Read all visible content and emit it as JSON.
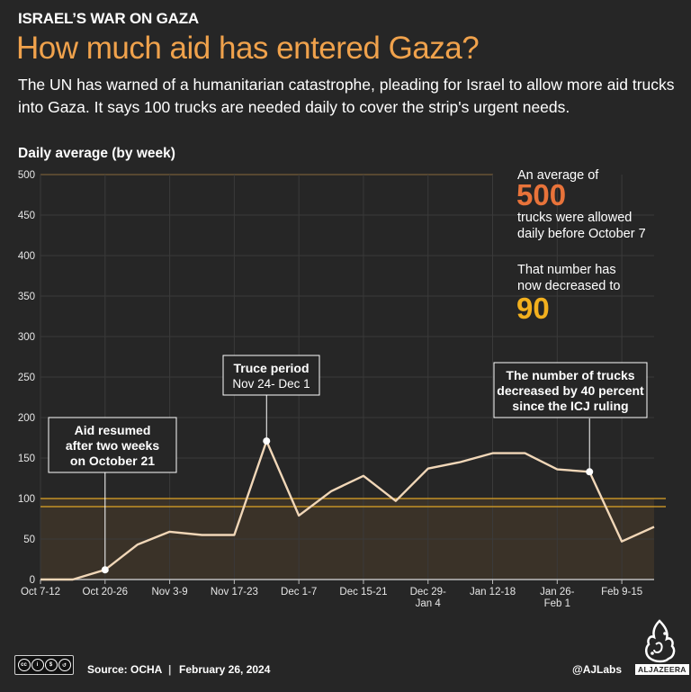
{
  "kicker": "ISRAEL’S WAR ON GAZA",
  "title": "How much aid has entered Gaza?",
  "subtitle": "The UN has warned of a humanitarian catastrophe, pleading for Israel to allow more aid trucks into Gaza. It says 100 trucks are needed daily to cover the strip's urgent needs.",
  "chart_data": {
    "type": "line",
    "ylabel": "Daily average (by week)",
    "ylim": [
      0,
      500
    ],
    "yticks": [
      0,
      50,
      100,
      150,
      200,
      250,
      300,
      350,
      400,
      450,
      500
    ],
    "grid": true,
    "xticks": [
      {
        "label": "Oct 7-12",
        "index": 0
      },
      {
        "label": "Oct 20-26",
        "index": 2
      },
      {
        "label": "Nov 3-9",
        "index": 4
      },
      {
        "label": "Nov 17-23",
        "index": 6
      },
      {
        "label": "Dec 1-7",
        "index": 8
      },
      {
        "label": "Dec 15-21",
        "index": 10
      },
      {
        "label": "Dec 29-\nJan 4",
        "index": 12
      },
      {
        "label": "Jan 12-18",
        "index": 14
      },
      {
        "label": "Jan 26-\nFeb 1",
        "index": 16
      },
      {
        "label": "Feb 9-15",
        "index": 18
      }
    ],
    "values": [
      0,
      0,
      12,
      43,
      59,
      55,
      55,
      171,
      79,
      109,
      128,
      97,
      137,
      145,
      156,
      156,
      136,
      133,
      47,
      65
    ],
    "reference_lines": [
      {
        "value": 100,
        "color": "#e0a526"
      },
      {
        "value": 90,
        "color": "#e0a526"
      }
    ],
    "annotations": [
      {
        "lines": [
          "Aid resumed",
          "after two weeks",
          "on October 21"
        ],
        "index": 2
      },
      {
        "lines": [
          "Truce period",
          "Nov 24- Dec 1"
        ],
        "index": 7
      },
      {
        "lines": [
          "The number of trucks",
          "decreased by 40 percent",
          "since the ICJ ruling"
        ],
        "index": 17
      }
    ]
  },
  "callouts": {
    "pre_text": "An average of",
    "pre_value": "500",
    "pre_value_color": "#e8733a",
    "pre_after_line1": "trucks were allowed",
    "pre_after_line2": "daily before October 7",
    "now_line1": "That number has",
    "now_line2": "now decreased to",
    "now_value": "90",
    "now_value_color": "#f2b01e"
  },
  "footer": {
    "source": "Source:  OCHA",
    "date": "February 26, 2024",
    "credit": "@AJLabs",
    "brand": "ALJAZEERA",
    "license_icons": [
      "cc-icon",
      "by-icon",
      "nc-icon",
      "sa-icon"
    ]
  },
  "colors": {
    "background": "#262626",
    "line": "#f1d7b8",
    "area": "#3a3228",
    "accent": "#f0a24c"
  }
}
